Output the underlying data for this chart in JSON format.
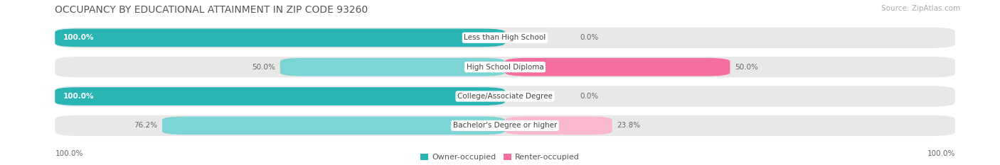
{
  "title": "OCCUPANCY BY EDUCATIONAL ATTAINMENT IN ZIP CODE 93260",
  "source": "Source: ZipAtlas.com",
  "categories": [
    "Less than High School",
    "High School Diploma",
    "College/Associate Degree",
    "Bachelor's Degree or higher"
  ],
  "owner_values": [
    100.0,
    50.0,
    100.0,
    76.2
  ],
  "renter_values": [
    0.0,
    50.0,
    0.0,
    23.8
  ],
  "owner_color_full": "#2ab5b5",
  "owner_color_partial": "#7dd4d4",
  "renter_color_full": "#f46fa0",
  "renter_color_partial": "#f9b8cf",
  "bar_bg_color": "#e8e8e8",
  "background_color": "#ffffff",
  "title_fontsize": 10,
  "label_fontsize": 7.5,
  "tick_fontsize": 7.5,
  "source_fontsize": 7.5,
  "legend_fontsize": 8,
  "bar_height": 0.62,
  "figsize": [
    14.06,
    2.33
  ]
}
